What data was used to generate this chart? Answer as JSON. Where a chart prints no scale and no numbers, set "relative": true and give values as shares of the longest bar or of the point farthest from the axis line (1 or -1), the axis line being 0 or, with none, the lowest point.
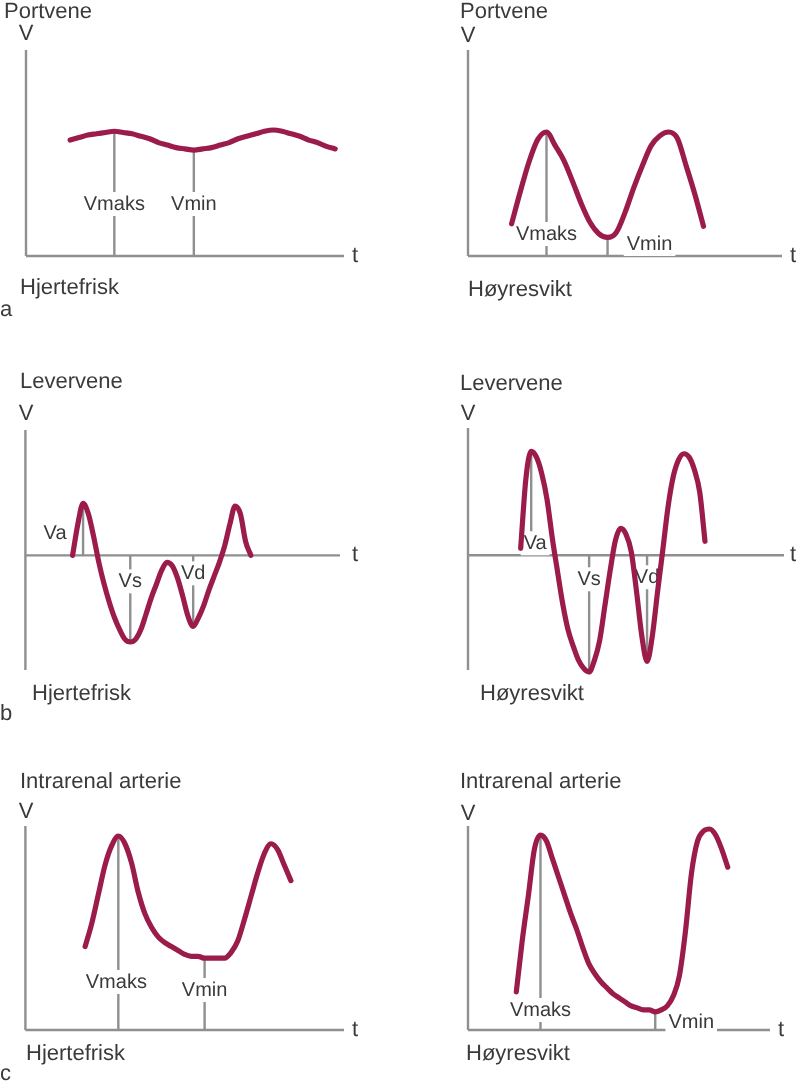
{
  "chart_data": [
    {
      "type": "line",
      "title": "Portvene",
      "subtitle": "Hjertefrisk",
      "xlabel": "t",
      "ylabel": "V",
      "relative": true,
      "color": "#9b1c4a",
      "categories": [
        null,
        null,
        null,
        null,
        null,
        null,
        null,
        null,
        null,
        null,
        null,
        null,
        null,
        null,
        null,
        null,
        null,
        null,
        null,
        null,
        null,
        null,
        null,
        null,
        null,
        null,
        null,
        null,
        null,
        null,
        null,
        null,
        null,
        null,
        null,
        null,
        null
      ],
      "values": [
        null,
        null,
        null,
        null,
        null,
        0.92,
        0.94,
        0.96,
        0.97,
        0.98,
        0.99,
        0.98,
        0.97,
        0.95,
        0.93,
        0.9,
        0.88,
        0.86,
        0.85,
        0.84,
        0.85,
        0.86,
        0.88,
        0.9,
        0.93,
        0.95,
        0.97,
        0.99,
        1,
        0.99,
        0.97,
        0.95,
        0.92,
        0.9,
        0.87,
        0.85,
        null
      ],
      "annotations": [
        "Vmaks",
        "Vmin",
        "a"
      ]
    },
    {
      "type": "line",
      "title": "Portvene",
      "subtitle": "Høyresvikt",
      "xlabel": "t",
      "ylabel": "V",
      "relative": true,
      "color": "#9b1c4a",
      "categories": [
        null,
        null,
        null,
        null,
        null,
        null,
        null,
        null,
        null,
        null,
        null,
        null,
        null,
        null,
        null,
        null,
        null,
        null,
        null,
        null,
        null,
        null,
        null,
        null,
        null,
        null,
        null,
        null,
        null,
        null,
        null,
        null,
        null,
        null,
        null,
        null,
        null
      ],
      "values": [
        null,
        null,
        null,
        null,
        null,
        0.26,
        0.52,
        0.76,
        0.94,
        1,
        0.89,
        0.77,
        0.6,
        0.42,
        0.27,
        0.18,
        0.15,
        0.19,
        0.35,
        0.55,
        0.73,
        0.89,
        0.97,
        1,
        0.95,
        0.73,
        0.5,
        0.24,
        null,
        null,
        null,
        null,
        null,
        null,
        null,
        null,
        null
      ],
      "annotations": [
        "Vmaks",
        "Vmin"
      ]
    },
    {
      "type": "line",
      "title": "Levervene",
      "subtitle": "Hjertefrisk",
      "xlabel": "t",
      "ylabel": "V",
      "relative": true,
      "color": "#9b1c4a",
      "categories": [
        null,
        null,
        null,
        null,
        null,
        null,
        null,
        null,
        null,
        null,
        null,
        null,
        null,
        null,
        null,
        null,
        null,
        null,
        null,
        null,
        null,
        null,
        null,
        null,
        null,
        null,
        null,
        null,
        null,
        null,
        null,
        null,
        null,
        null,
        null,
        null,
        null,
        null,
        null,
        null,
        null,
        null,
        null,
        null,
        null,
        null,
        null,
        null,
        null,
        null,
        null,
        null,
        null,
        null,
        null,
        null,
        null,
        null,
        null,
        null,
        null
      ],
      "values": [
        null,
        null,
        null,
        null,
        null,
        null,
        null,
        null,
        null,
        0,
        0.36,
        0.6,
        0.48,
        0.22,
        -0.08,
        -0.33,
        -0.54,
        -0.72,
        -0.86,
        -0.97,
        -1,
        -0.97,
        -0.86,
        -0.68,
        -0.49,
        -0.33,
        -0.17,
        -0.08,
        -0.12,
        -0.26,
        -0.47,
        -0.7,
        -0.82,
        -0.72,
        -0.58,
        -0.4,
        -0.24,
        -0.08,
        0.11,
        0.36,
        0.57,
        0.48,
        0.16,
        0,
        null,
        null,
        null,
        null,
        null,
        null,
        null,
        null,
        null,
        null,
        null,
        null,
        null,
        null,
        null,
        null,
        null
      ],
      "annotations": [
        "Va",
        "Vs",
        "Vd",
        "b"
      ]
    },
    {
      "type": "line",
      "title": "Levervene",
      "subtitle": "Høyresvikt",
      "xlabel": "t",
      "ylabel": "V",
      "relative": true,
      "color": "#9b1c4a",
      "categories": [
        null,
        null,
        null,
        null,
        null,
        null,
        null,
        null,
        null,
        null,
        null,
        null,
        null,
        null,
        null,
        null,
        null,
        null,
        null,
        null,
        null,
        null,
        null,
        null,
        null,
        null,
        null,
        null,
        null,
        null,
        null,
        null,
        null,
        null,
        null,
        null,
        null,
        null,
        null,
        null,
        null,
        null,
        null,
        null,
        null,
        null,
        null,
        null,
        null,
        null,
        null,
        null,
        null,
        null,
        null,
        null,
        null,
        null,
        null,
        null,
        null
      ],
      "values": [
        null,
        null,
        null,
        null,
        null,
        null,
        null,
        null,
        null,
        null,
        0.06,
        0.66,
        0.89,
        0.84,
        0.7,
        0.48,
        0.15,
        -0.14,
        -0.42,
        -0.64,
        -0.78,
        -0.9,
        -0.97,
        -1,
        -0.9,
        -0.73,
        -0.43,
        -0.13,
        0.13,
        0.23,
        0.18,
        0.03,
        -0.31,
        -0.69,
        -0.91,
        -0.69,
        -0.31,
        0.05,
        0.42,
        0.68,
        0.82,
        0.87,
        0.84,
        0.73,
        0.54,
        0.12,
        null,
        null,
        null,
        null,
        null,
        null,
        null,
        null,
        null,
        null,
        null,
        null,
        null,
        null,
        null
      ],
      "annotations": [
        "Va",
        "Vs",
        "Vd"
      ]
    },
    {
      "type": "line",
      "title": "Intrarenal arterie",
      "subtitle": "Hjertefrisk",
      "xlabel": "t",
      "ylabel": "V",
      "relative": true,
      "color": "#9b1c4a",
      "categories": [
        null,
        null,
        null,
        null,
        null,
        null,
        null,
        null,
        null,
        null,
        null,
        null,
        null,
        null,
        null,
        null,
        null,
        null,
        null,
        null,
        null,
        null,
        null,
        null,
        null,
        null,
        null,
        null,
        null,
        null,
        null,
        null,
        null,
        null,
        null,
        null,
        null,
        null,
        null,
        null,
        null,
        null,
        null,
        null,
        null,
        null,
        null,
        null,
        null
      ],
      "values": [
        null,
        null,
        null,
        null,
        null,
        null,
        null,
        null,
        null,
        0.43,
        0.55,
        0.7,
        0.85,
        0.95,
        1,
        0.96,
        0.86,
        0.71,
        0.6,
        0.53,
        0.48,
        0.45,
        0.43,
        0.41,
        0.39,
        0.38,
        0.38,
        0.37,
        0.37,
        0.37,
        0.37,
        0.4,
        0.46,
        0.57,
        0.69,
        0.81,
        0.91,
        0.96,
        0.93,
        0.85,
        0.77,
        null,
        null,
        null,
        null,
        null,
        null,
        null,
        null
      ],
      "annotations": [
        "Vmaks",
        "Vmin",
        "c"
      ]
    },
    {
      "type": "line",
      "title": "Intrarenal arterie",
      "subtitle": "Høyresvikt",
      "xlabel": "t",
      "ylabel": "V",
      "relative": true,
      "color": "#9b1c4a",
      "categories": [
        null,
        null,
        null,
        null,
        null,
        null,
        null,
        null,
        null,
        null,
        null,
        null,
        null,
        null,
        null,
        null,
        null,
        null,
        null,
        null,
        null,
        null,
        null,
        null,
        null,
        null,
        null,
        null,
        null,
        null,
        null,
        null,
        null,
        null,
        null,
        null,
        null,
        null,
        null,
        null,
        null,
        null,
        null,
        null,
        null,
        null,
        null,
        null,
        null,
        null,
        null
      ],
      "values": [
        null,
        null,
        null,
        null,
        null,
        null,
        null,
        null,
        0.19,
        0.45,
        0.67,
        0.9,
        0.97,
        0.94,
        0.85,
        0.76,
        0.67,
        0.58,
        0.5,
        0.41,
        0.33,
        0.28,
        0.24,
        0.21,
        0.18,
        0.16,
        0.14,
        0.12,
        0.11,
        0.1,
        0.1,
        0.09,
        0.1,
        0.12,
        0.17,
        0.27,
        0.49,
        0.78,
        0.94,
        0.99,
        1,
        0.97,
        0.9,
        0.81,
        null,
        null,
        null,
        null,
        null,
        null,
        null
      ],
      "annotations": [
        "Vmaks",
        "Vmin"
      ]
    }
  ]
}
